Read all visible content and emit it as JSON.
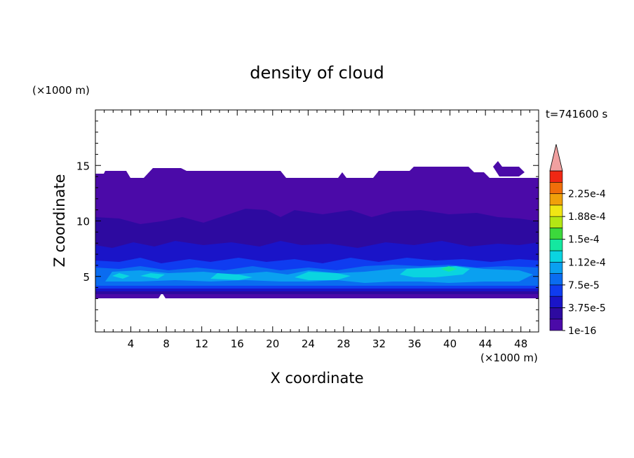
{
  "chart_data": {
    "type": "heatmap",
    "title": "density of cloud",
    "xlabel": "X coordinate",
    "ylabel": "Z coordinate",
    "x_unit": "(×1000 m)",
    "y_unit": "(×1000 m)",
    "time_label": "t=741600 s",
    "xlim": [
      0,
      50
    ],
    "ylim": [
      0,
      20
    ],
    "x_ticks": [
      "4",
      "8",
      "12",
      "16",
      "20",
      "24",
      "28",
      "32",
      "36",
      "40",
      "44",
      "48"
    ],
    "y_ticks": [
      "5",
      "10",
      "15"
    ],
    "colorbar": {
      "labels": [
        "1e-16",
        "3.75e-5",
        "7.5e-5",
        "1.12e-4",
        "1.5e-4",
        "1.88e-4",
        "2.25e-4"
      ],
      "levels": [
        1e-16,
        1.875e-05,
        3.75e-05,
        5.625e-05,
        7.5e-05,
        9.375e-05,
        0.0001125,
        0.00013125,
        0.00015,
        0.00016875,
        0.0001875,
        0.00020625,
        0.000225,
        0.00024375
      ],
      "colors": [
        "#4b0aa8",
        "#2d0aa0",
        "#1a14c8",
        "#0f3cf0",
        "#0a6cf0",
        "#0aa0f0",
        "#0ad4e0",
        "#14e8a0",
        "#3cd83c",
        "#b4e614",
        "#f0e614",
        "#f0a00a",
        "#f06e0a",
        "#f02814"
      ],
      "overflow_color": "#f0a0a0"
    },
    "cloud_layers": [
      {
        "level_index": 0,
        "description_z": [
          3.2,
          14.0
        ]
      },
      {
        "level_index": 1,
        "description_z": [
          3.6,
          11.0
        ]
      },
      {
        "level_index": 2,
        "description_z": [
          3.8,
          8.5
        ]
      },
      {
        "level_index": 3,
        "description_z": [
          4.2,
          6.5
        ]
      },
      {
        "level_index": 4,
        "description_z": [
          4.5,
          6.0
        ]
      },
      {
        "level_index": 5,
        "description_z": [
          4.7,
          5.7
        ]
      },
      {
        "level_index": 6,
        "description_z": [
          4.9,
          5.4
        ]
      }
    ]
  }
}
